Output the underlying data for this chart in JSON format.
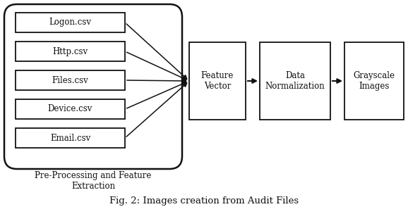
{
  "csv_labels": [
    "Logon.csv",
    "Http.csv",
    "Files.csv",
    "Device.csv",
    "Email.csv"
  ],
  "box1_label": "Feature\nVector",
  "box2_label": "Data\nNormalization",
  "box3_label": "Grayscale\nImages",
  "group_label": "Pre-Processing and Feature\nExtraction",
  "caption": "Fig. 2: Images creation from Audit Files",
  "bg_color": "#ffffff",
  "box_edge_color": "#111111",
  "text_color": "#111111",
  "arrow_color": "#111111",
  "font_size": 8.5,
  "caption_font_size": 9.5
}
